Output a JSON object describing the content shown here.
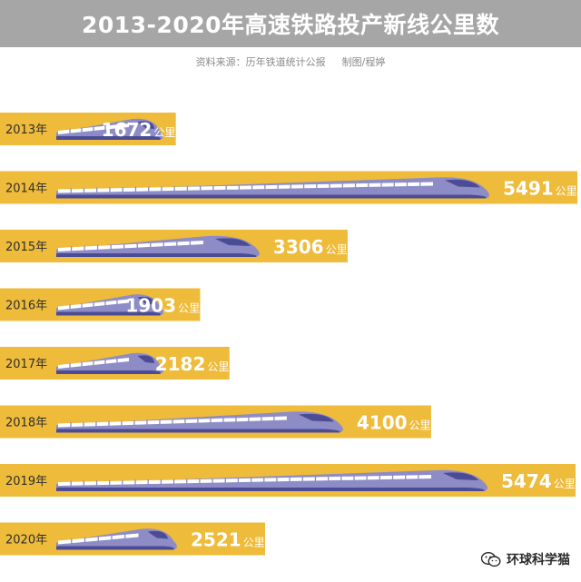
{
  "chart_data": {
    "type": "bar",
    "orientation": "horizontal",
    "title": "2013-2020年高速铁路投产新线公里数",
    "source": "资料来源：历年铁道统计公报",
    "credit": "制图/程婷",
    "categories": [
      "2013年",
      "2014年",
      "2015年",
      "2016年",
      "2017年",
      "2018年",
      "2019年",
      "2020年"
    ],
    "values": [
      1672,
      5491,
      3306,
      1903,
      2182,
      4100,
      5474,
      2521
    ],
    "unit": "公里",
    "xlim": [
      0,
      5491
    ],
    "colors": {
      "bar": "#eebb3a",
      "train_body": "#8d8cc7",
      "train_dark": "#4b4c95",
      "window_band": "#ffffff",
      "header_bg": "#a7a6a6"
    }
  },
  "watermark": {
    "icon": "wechat-icon",
    "text": "环球科学猫"
  }
}
